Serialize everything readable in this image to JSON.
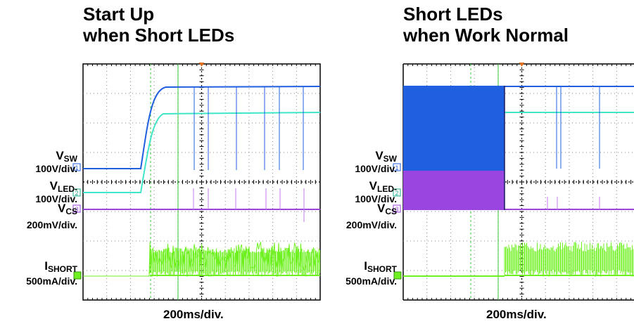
{
  "panels": [
    {
      "title_line1": "Start Up",
      "title_line2": "when Short LEDs",
      "timebase": "200ms/div.",
      "channels": [
        {
          "name": "V",
          "sub": "SW",
          "scale": "100V/div.",
          "marker": "1",
          "color": "#1f5fe0"
        },
        {
          "name": "V",
          "sub": "LED-",
          "scale": "100V/div.",
          "marker": "2",
          "color": "#3fe6c8"
        },
        {
          "name": "V",
          "sub": "CS",
          "scale": "200mV/div.",
          "marker": "3",
          "color": "#9a45e0"
        },
        {
          "name": "I",
          "sub": "SHORT",
          "scale": "500mA/div.",
          "marker": "4",
          "color": "#6ff020"
        }
      ]
    },
    {
      "title_line1": "Short LEDs",
      "title_line2": "when Work Normal",
      "timebase": "200ms/div.",
      "channels": [
        {
          "name": "V",
          "sub": "SW",
          "scale": "100V/div.",
          "marker": "1",
          "color": "#1f5fe0"
        },
        {
          "name": "V",
          "sub": "LED-",
          "scale": "100V/div.",
          "marker": "2",
          "color": "#3fe6c8"
        },
        {
          "name": "V",
          "sub": "CS",
          "scale": "200mV/div.",
          "marker": "3",
          "color": "#9a45e0"
        },
        {
          "name": "I",
          "sub": "SHORT",
          "scale": "500mA/div.",
          "marker": "4",
          "color": "#6ff020"
        }
      ]
    }
  ],
  "chart_data": [
    {
      "type": "line",
      "title": "Start Up when Short LEDs",
      "xlabel": "200ms/div.",
      "divisions": {
        "x": 10,
        "y": 8
      },
      "series": [
        {
          "name": "VSW",
          "values": [
            0,
            0,
            0,
            0.5,
            1,
            1,
            1,
            1,
            1,
            1,
            1
          ]
        },
        {
          "name": "VLED-",
          "values": [
            0,
            0,
            0,
            0.5,
            1,
            1,
            1,
            1,
            1,
            1,
            1
          ]
        },
        {
          "name": "VCS",
          "values": [
            0,
            0,
            0,
            0,
            0,
            0,
            0,
            0,
            0,
            0,
            0
          ]
        },
        {
          "name": "ISHORT",
          "values": [
            0,
            0,
            0,
            0,
            1,
            1,
            1,
            1,
            1,
            1,
            1
          ]
        }
      ]
    },
    {
      "type": "line",
      "title": "Short LEDs when Work Normal",
      "xlabel": "200ms/div.",
      "divisions": {
        "x": 10,
        "y": 8
      },
      "series": [
        {
          "name": "VSW",
          "values": [
            1,
            1,
            1,
            1,
            1,
            1,
            1,
            1,
            1,
            1,
            1
          ]
        },
        {
          "name": "VLED-",
          "values": [
            0,
            0,
            0,
            0,
            1,
            1,
            1,
            1,
            1,
            1,
            1
          ]
        },
        {
          "name": "VCS",
          "values": [
            1,
            1,
            1,
            1,
            0,
            0,
            0,
            0,
            0,
            0,
            0
          ]
        },
        {
          "name": "ISHORT",
          "values": [
            0,
            0,
            0,
            0,
            1,
            1,
            1,
            1,
            1,
            1,
            1
          ]
        }
      ]
    }
  ]
}
